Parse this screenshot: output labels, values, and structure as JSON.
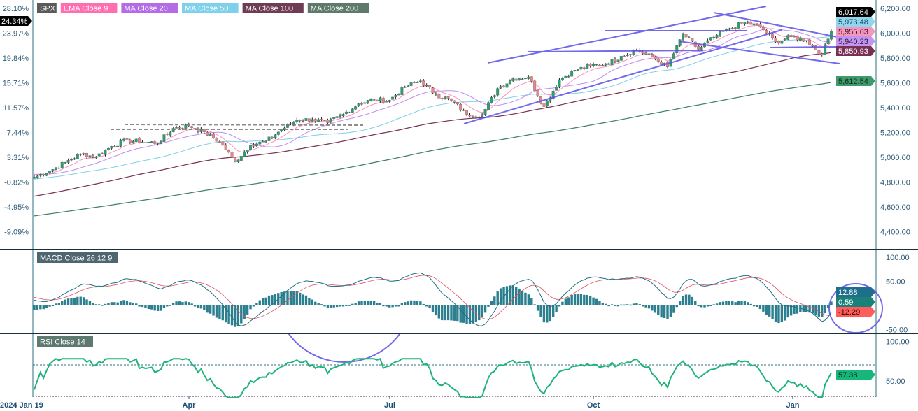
{
  "chart_data": {
    "type": "candlestick",
    "symbol": "SPX",
    "legend": [
      {
        "name": "SPX",
        "color": "#5a5a5a"
      },
      {
        "name": "EMA Close 9",
        "color": "#ff6fb0"
      },
      {
        "name": "MA Close 20",
        "color": "#b36be6"
      },
      {
        "name": "MA Close 50",
        "color": "#7fd0ea"
      },
      {
        "name": "MA Close 100",
        "color": "#6e3d55"
      },
      {
        "name": "MA Close 200",
        "color": "#5e7a6a"
      }
    ],
    "x_tick_labels": [
      "2024 Jan 19",
      "Apr",
      "Jul",
      "Oct",
      "Jan"
    ],
    "price_axis": {
      "ticks": [
        "6,200.00",
        "6,000.00",
        "5,800.00",
        "5,600.00",
        "5,400.00",
        "5,200.00",
        "5,000.00",
        "4,800.00",
        "4,600.00",
        "4,400.00"
      ],
      "ylim": [
        4330,
        6230
      ]
    },
    "percent_axis": {
      "ticks": [
        "28.10%",
        "23.97%",
        "19.84%",
        "15.71%",
        "11.57%",
        "7.44%",
        "3.31%",
        "-0.82%",
        "-4.95%",
        "-9.09%"
      ],
      "current": "24.34%"
    },
    "weekly_closes": [
      4840,
      4891,
      4959,
      5027,
      5005,
      5089,
      5137,
      5124,
      5117,
      5234,
      5254,
      5204,
      5123,
      4967,
      5100,
      5128,
      5223,
      5303,
      5305,
      5278,
      5347,
      5431,
      5465,
      5460,
      5567,
      5615,
      5505,
      5459,
      5346,
      5344,
      5554,
      5634,
      5648,
      5408,
      5626,
      5703,
      5738,
      5751,
      5815,
      5864,
      5808,
      5728,
      5995,
      5870,
      5969,
      6032,
      6090,
      6051,
      5930,
      5970,
      5942,
      5827,
      6017.64
    ],
    "value_tags": [
      {
        "label": "6,017.64",
        "series": "SPX",
        "bg": "#000000",
        "fg": "#ffffff"
      },
      {
        "label": "5,973.48",
        "series": "MA Close 50",
        "bg": "#8fd6ef",
        "fg": "#1d3d55"
      },
      {
        "label": "5,955.63",
        "series": "EMA Close 9",
        "bg": "#f597bd",
        "fg": "#3a1a2a"
      },
      {
        "label": "5,940.23",
        "series": "MA Close 20",
        "bg": "#c394f0",
        "fg": "#2a1a3a"
      },
      {
        "label": "5,850.93",
        "series": "MA Close 100",
        "bg": "#7a2f55",
        "fg": "#ffffff"
      },
      {
        "label": "5,612.54",
        "series": "MA Close 200",
        "bg": "#3f9a6c",
        "fg": "#10301f"
      }
    ],
    "macd": {
      "title": "MACD Close 26 12 9",
      "ticks": [
        "100.00",
        "50.00",
        "-50.00"
      ],
      "ylim": [
        -60,
        100
      ],
      "tags": [
        {
          "label": "12.88",
          "bg": "#1f6e8c",
          "fg": "#ffffff"
        },
        {
          "label": "0.59",
          "bg": "#19807a",
          "fg": "#ffffff"
        },
        {
          "label": "-12.29",
          "bg": "#ff5c5c",
          "fg": "#3a0000"
        }
      ]
    },
    "rsi": {
      "title": "RSI Close 14",
      "ticks": [
        "100.00",
        "50.00"
      ],
      "levels": [
        70,
        30
      ],
      "tag": {
        "label": "57.38",
        "bg": "#17b77b",
        "fg": "#0a2a1a"
      }
    },
    "colors": {
      "up": "#2e9e6e",
      "down": "#e8868a",
      "trendline": "#6a5ee8",
      "macd": "#1f6e80",
      "signal": "#e05060",
      "rsi": "#1db47a",
      "axis": "#2a6f80"
    }
  }
}
